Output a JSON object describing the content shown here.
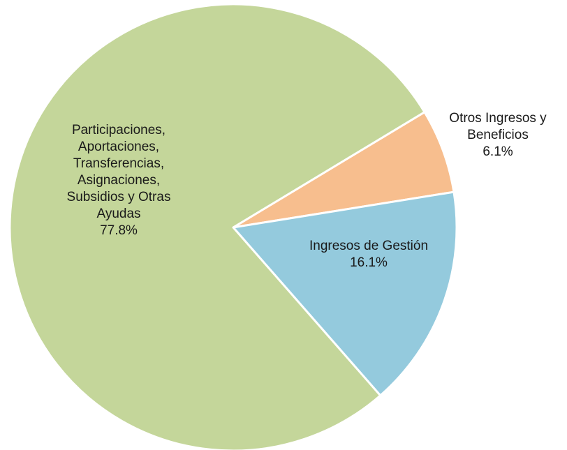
{
  "chart_data": {
    "type": "pie",
    "title": "",
    "slices": [
      {
        "label_lines": [
          "Otros Ingresos y",
          "Beneficios"
        ],
        "value": 6.1,
        "value_label": "6.1%",
        "color": "#F7BE8E"
      },
      {
        "label_lines": [
          "Ingresos de Gestión"
        ],
        "value": 16.1,
        "value_label": "16.1%",
        "color": "#94CADD"
      },
      {
        "label_lines": [
          "Participaciones,",
          "Aportaciones,",
          "Transferencias,",
          "Asignaciones,",
          "Subsidios y Otras",
          "Ayudas"
        ],
        "value": 77.8,
        "value_label": "77.8%",
        "color": "#C4D69A"
      }
    ],
    "legend": "none",
    "slice_border_color": "#ffffff"
  }
}
